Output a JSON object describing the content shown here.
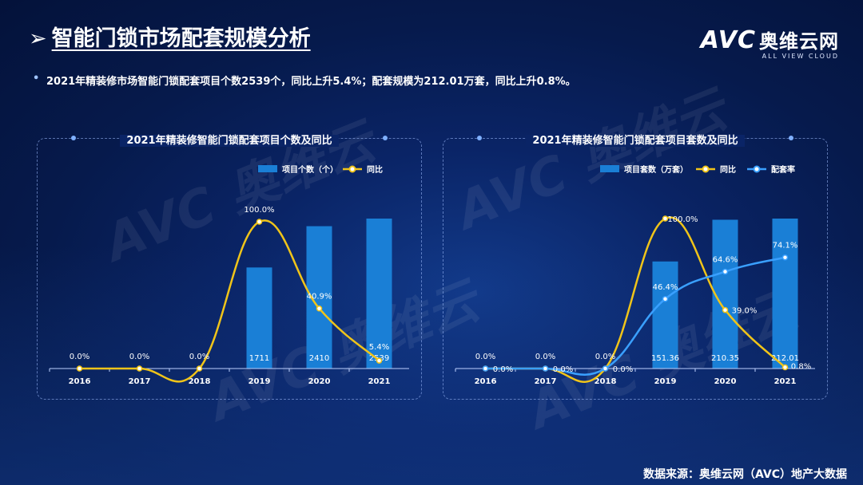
{
  "title": "智能门锁市场配套规模分析",
  "bullet": "2021年精装修市场智能门锁配套项目个数2539个，同比上升5.4%；配套规模为212.01万套，同比上升0.8%。",
  "logo": {
    "brand": "AVC",
    "cn": "奥维云网",
    "sub": "ALL VIEW CLOUD"
  },
  "source": "数据来源：奥维云网（AVC）地产大数据",
  "colors": {
    "bar": "#1a7fd6",
    "yoy": "#f0c419",
    "rate": "#3aa0ff"
  },
  "chart_data": [
    {
      "type": "bar",
      "title": "2021年精装修智能门锁配套项目个数及同比",
      "categories": [
        "2016",
        "2017",
        "2018",
        "2019",
        "2020",
        "2021"
      ],
      "series": [
        {
          "name": "项目个数（个）",
          "type": "bar",
          "values": [
            0,
            0,
            0,
            1711,
            2410,
            2539
          ],
          "labels": [
            "",
            "",
            "",
            "1711",
            "2410",
            "2539"
          ]
        },
        {
          "name": "同比",
          "type": "line",
          "values": [
            0,
            0,
            0,
            100,
            40.9,
            5.4
          ],
          "labels": [
            "0.0%",
            "0.0%",
            "0.0%",
            "100.0%",
            "40.9%",
            "5.4%"
          ]
        }
      ]
    },
    {
      "type": "bar",
      "title": "2021年精装修智能门锁配套项目套数及同比",
      "categories": [
        "2016",
        "2017",
        "2018",
        "2019",
        "2020",
        "2021"
      ],
      "series": [
        {
          "name": "项目套数（万套）",
          "type": "bar",
          "values": [
            0,
            0,
            0,
            151.36,
            210.35,
            212.01
          ],
          "labels": [
            "",
            "",
            "",
            "151.36",
            "210.35",
            "212.01"
          ]
        },
        {
          "name": "同比",
          "type": "line",
          "values": [
            0,
            0,
            0,
            100,
            39.0,
            0.8
          ],
          "labels": [
            "0.0%",
            "0.0%",
            "0.0%",
            "100.0%",
            "39.0%",
            "0.8%"
          ]
        },
        {
          "name": "配套率",
          "type": "line",
          "values": [
            0,
            0,
            0,
            46.4,
            64.6,
            74.1
          ],
          "labels": [
            "0.0%",
            "0.0%",
            "0.0%",
            "46.4%",
            "64.6%",
            "74.1%"
          ]
        }
      ]
    }
  ]
}
